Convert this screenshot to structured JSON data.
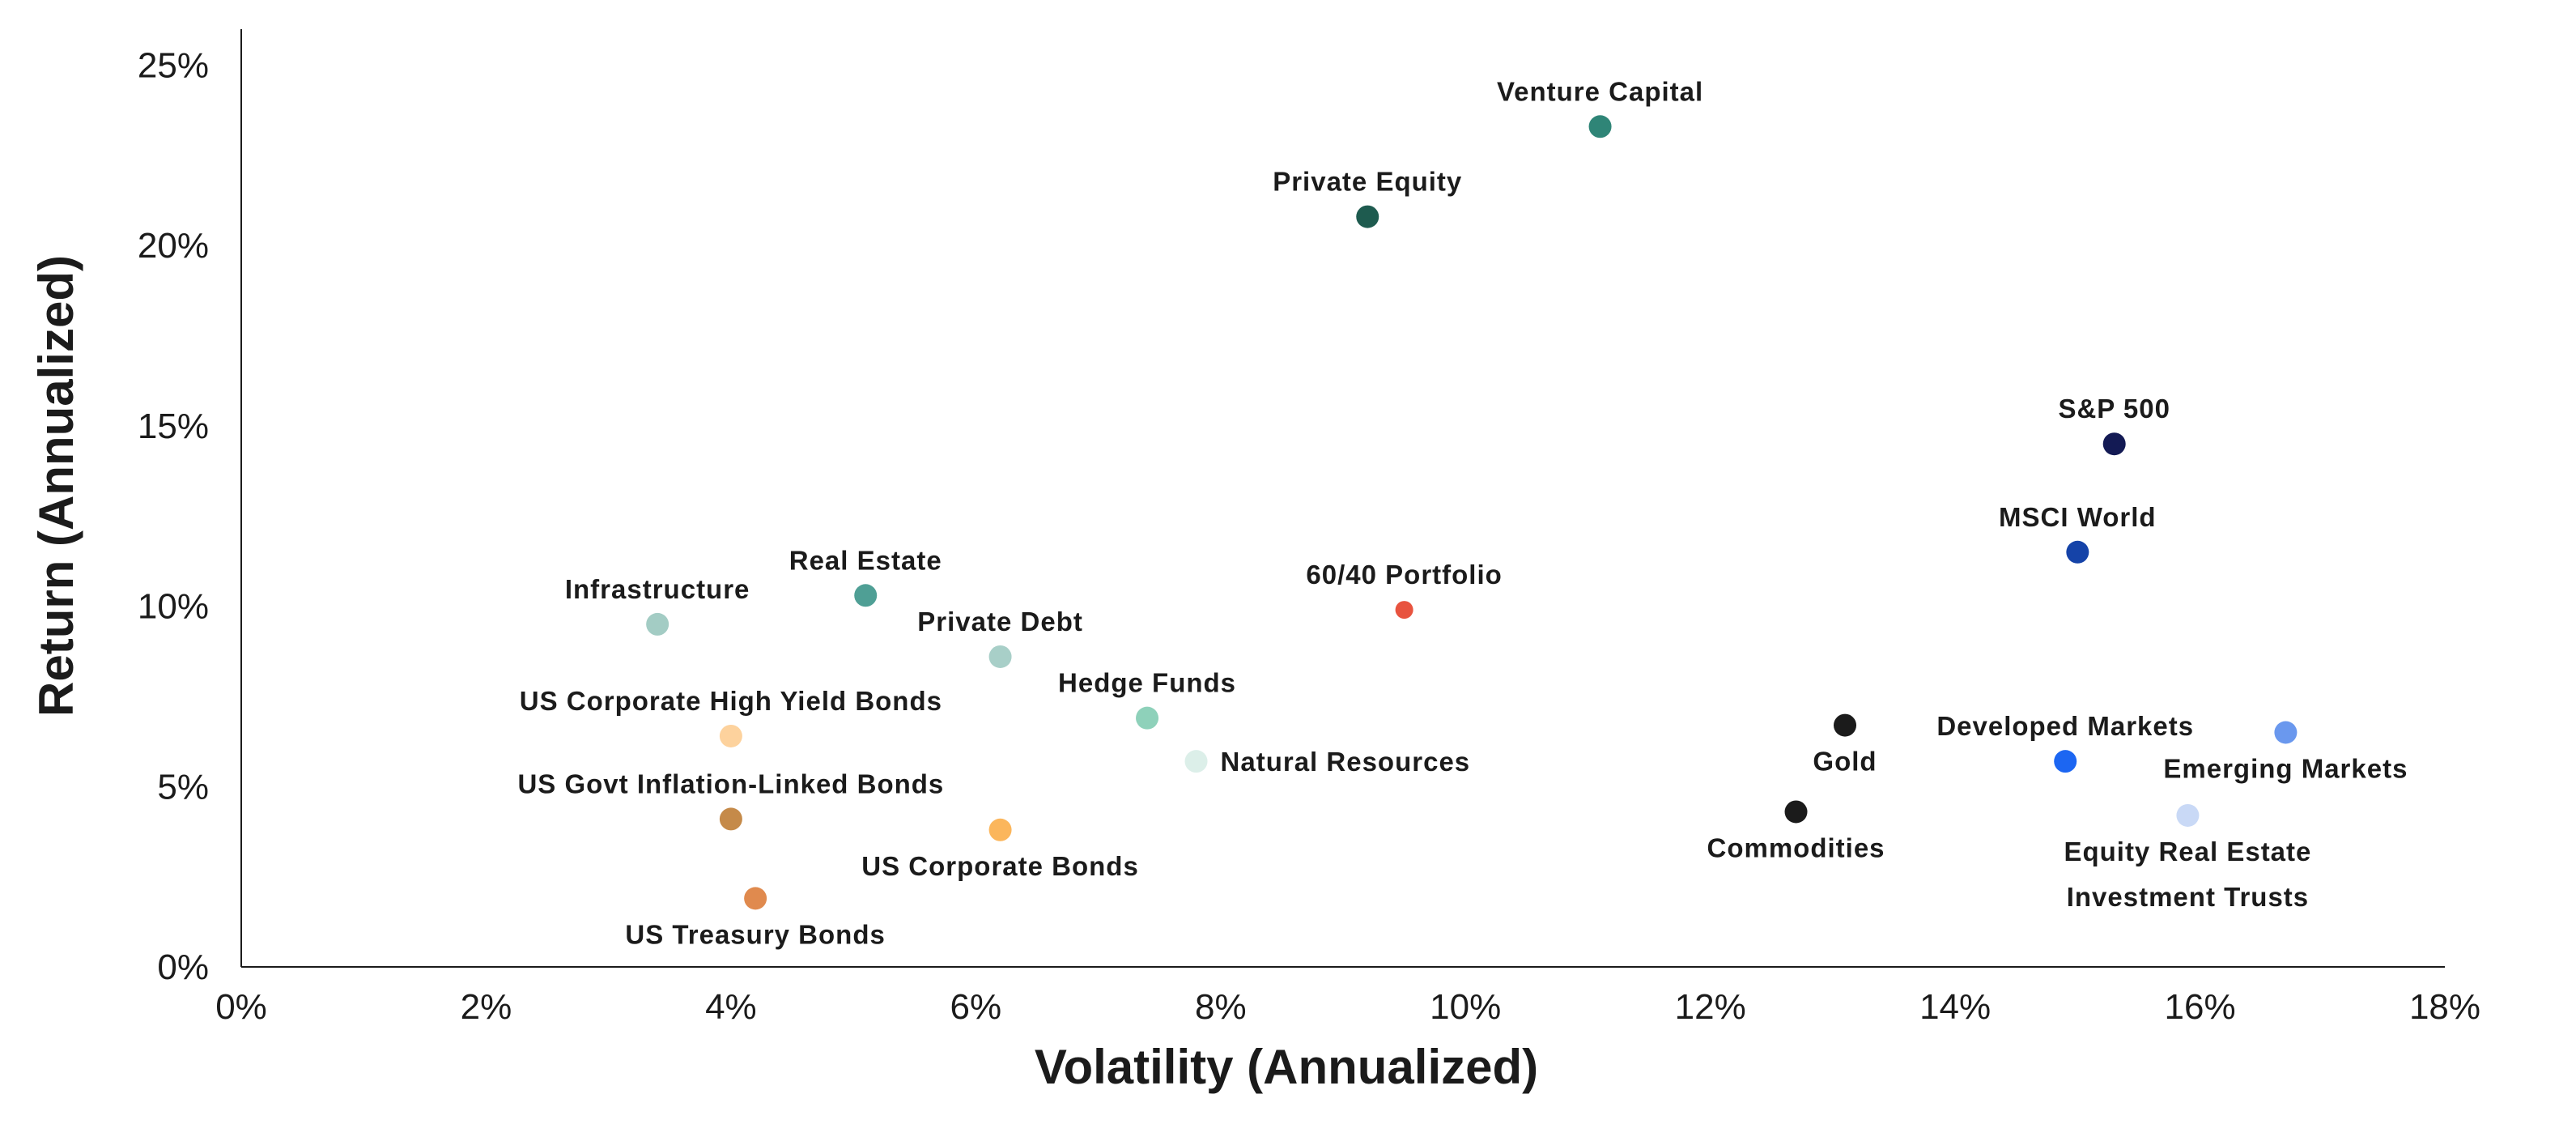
{
  "chart_data": {
    "type": "scatter",
    "title": "",
    "xlabel": "Volatility (Annualized)",
    "ylabel": "Return (Annualized)",
    "xlim": [
      0,
      18
    ],
    "ylim": [
      0,
      26
    ],
    "xticks": [
      0,
      2,
      4,
      6,
      8,
      10,
      12,
      14,
      16,
      18
    ],
    "yticks": [
      0,
      5,
      10,
      15,
      20,
      25
    ],
    "xtick_labels": [
      "0%",
      "2%",
      "4%",
      "6%",
      "8%",
      "10%",
      "12%",
      "14%",
      "16%",
      "18%"
    ],
    "ytick_labels": [
      "0%",
      "5%",
      "10%",
      "15%",
      "20%",
      "25%"
    ],
    "grid": false,
    "points": [
      {
        "name": "Venture Capital",
        "x": 11.1,
        "y": 23.3,
        "color": "#2f8577",
        "label_pos": "above"
      },
      {
        "name": "Private Equity",
        "x": 9.2,
        "y": 20.8,
        "color": "#1e5b4f",
        "label_pos": "above"
      },
      {
        "name": "S&P 500",
        "x": 15.3,
        "y": 14.5,
        "color": "#131a54",
        "label_pos": "above"
      },
      {
        "name": "MSCI World",
        "x": 15.0,
        "y": 11.5,
        "color": "#1543a8",
        "label_pos": "above"
      },
      {
        "name": "Real Estate",
        "x": 5.1,
        "y": 10.3,
        "color": "#4f9f95",
        "label_pos": "above"
      },
      {
        "name": "Infrastructure",
        "x": 3.4,
        "y": 9.5,
        "color": "#a3ccc4",
        "label_pos": "above"
      },
      {
        "name": "60/40 Portfolio",
        "x": 9.5,
        "y": 9.9,
        "color": "#e8533f",
        "label_pos": "above"
      },
      {
        "name": "Private Debt",
        "x": 6.2,
        "y": 8.6,
        "color": "#a8cfc8",
        "label_pos": "above"
      },
      {
        "name": "Hedge Funds",
        "x": 7.4,
        "y": 6.9,
        "color": "#8ed1ba",
        "label_pos": "above"
      },
      {
        "name": "US Corporate High Yield Bonds",
        "x": 4.0,
        "y": 6.4,
        "color": "#fdd29d",
        "label_pos": "above"
      },
      {
        "name": "Natural Resources",
        "x": 7.8,
        "y": 5.7,
        "color": "#dcefe9",
        "label_pos": "right"
      },
      {
        "name": "Gold",
        "x": 13.1,
        "y": 6.7,
        "color": "#1b1b1b",
        "label_pos": "below"
      },
      {
        "name": "Developed Markets",
        "x": 14.9,
        "y": 5.7,
        "color": "#1c66f2",
        "label_pos": "above"
      },
      {
        "name": "Emerging Markets",
        "x": 16.7,
        "y": 6.5,
        "color": "#6a98ee",
        "label_pos": "below"
      },
      {
        "name": "US Govt Inflation-Linked Bonds",
        "x": 4.0,
        "y": 4.1,
        "color": "#c58a49",
        "label_pos": "above"
      },
      {
        "name": "Commodities",
        "x": 12.7,
        "y": 4.3,
        "color": "#1b1b1b",
        "label_pos": "below"
      },
      {
        "name": "US Corporate Bonds",
        "x": 6.2,
        "y": 3.8,
        "color": "#fbb65c",
        "label_pos": "below"
      },
      {
        "name": "Equity Real Estate Investment Trusts",
        "label_lines": [
          "Equity Real Estate",
          "Investment Trusts"
        ],
        "x": 15.9,
        "y": 4.2,
        "color": "#c9d9f6",
        "label_pos": "below"
      },
      {
        "name": "US Treasury Bonds",
        "x": 4.2,
        "y": 1.9,
        "color": "#e08a4e",
        "label_pos": "below"
      }
    ]
  }
}
